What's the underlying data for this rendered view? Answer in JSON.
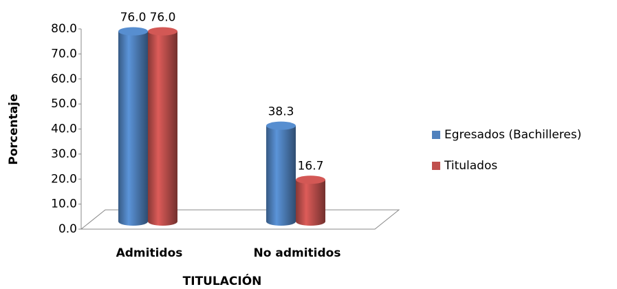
{
  "chart_data": {
    "type": "bar3d",
    "x_label": "TITULACIÓN",
    "y_label": "Porcentaje",
    "categories": [
      "Admitidos",
      "No admitidos"
    ],
    "series": [
      {
        "name": "Egresados (Bachilleres)",
        "color": "#4f81bd",
        "values": [
          76.0,
          38.3
        ],
        "value_labels": [
          "76.0",
          "38.3"
        ]
      },
      {
        "name": "Titulados",
        "color": "#c0504d",
        "values": [
          76.0,
          16.7
        ],
        "value_labels": [
          "76.0",
          "16.7"
        ]
      }
    ],
    "ylim": [
      0,
      80
    ],
    "yticks": [
      {
        "value": 0,
        "label": "0.0"
      },
      {
        "value": 10,
        "label": "10.0"
      },
      {
        "value": 20,
        "label": "20.0"
      },
      {
        "value": 30,
        "label": "30.0"
      },
      {
        "value": 40,
        "label": "40.0"
      },
      {
        "value": 50,
        "label": "50.0"
      },
      {
        "value": 60,
        "label": "60.0"
      },
      {
        "value": 70,
        "label": "70.0"
      },
      {
        "value": 80,
        "label": "80.0"
      }
    ],
    "legend": "right"
  }
}
